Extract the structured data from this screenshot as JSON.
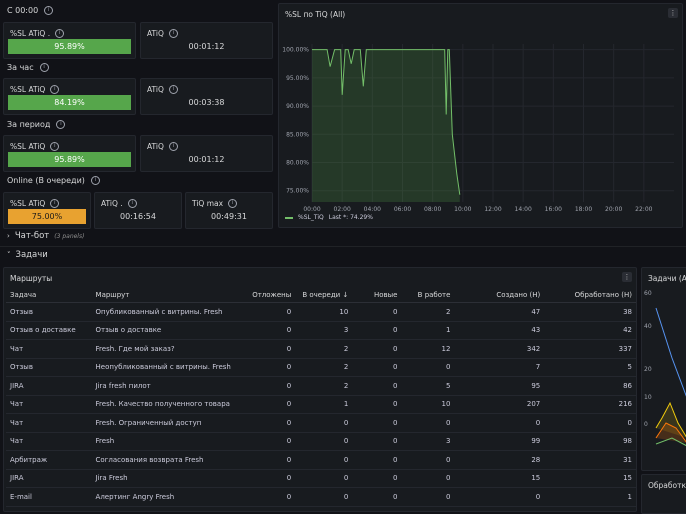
{
  "colors": {
    "green": "#56a64b",
    "orange": "#e8a230",
    "bg": "#111217",
    "panel": "#181b1f"
  },
  "groups": [
    {
      "title": "С 00:00",
      "stat_title": "%SL ATiQ .",
      "stat_value": "95.89%",
      "stat_color": "#56a64b",
      "stat_level": 0.9589,
      "atiq_title": "ATiQ",
      "atiq_value": "00:01:12"
    },
    {
      "title": "За час",
      "stat_title": "%SL ATiQ",
      "stat_value": "84.19%",
      "stat_color": "#56a64b",
      "stat_level": 0.8419,
      "atiq_title": "ATiQ",
      "atiq_value": "00:03:38"
    },
    {
      "title": "За период",
      "stat_title": "%SL ATiQ",
      "stat_value": "95.89%",
      "stat_color": "#56a64b",
      "stat_level": 0.9589,
      "atiq_title": "ATiQ",
      "atiq_value": "00:01:12"
    }
  ],
  "online": {
    "title": "Online (В очереди)",
    "stat_title": "%SL ATiQ",
    "stat_value": "75.00%",
    "stat_level": 0.75,
    "atiq_title": "ATiQ .",
    "atiq_value": "00:16:54",
    "max_title": "TiQ max",
    "max_value": "00:49:31"
  },
  "chart_panel": {
    "title": "%SL по TiQ (All)",
    "legend_label": "%SL_TiQ",
    "legend_last": "Last *: 74.29%"
  },
  "chart_data": {
    "type": "line",
    "title": "%SL по TiQ (All)",
    "xlabel": "",
    "ylabel": "",
    "y_ticks": [
      "100.00%",
      "95.00%",
      "90.00%",
      "85.00%",
      "80.00%",
      "75.00%"
    ],
    "x_ticks": [
      "00:00",
      "02:00",
      "04:00",
      "06:00",
      "08:00",
      "10:00",
      "12:00",
      "14:00",
      "16:00",
      "18:00",
      "20:00",
      "22:00"
    ],
    "ylim": [
      73,
      101
    ],
    "xlim": [
      0,
      24
    ],
    "series": [
      {
        "name": "%SL_TiQ",
        "x": [
          0,
          0.8,
          1.0,
          1.2,
          1.5,
          1.9,
          2.0,
          2.2,
          2.4,
          2.6,
          2.8,
          3.0,
          3.2,
          3.4,
          3.6,
          4.0,
          5.0,
          6.0,
          7.0,
          8.0,
          8.6,
          8.8,
          8.9,
          9.0,
          9.1,
          9.3,
          9.6,
          9.8
        ],
        "values": [
          100,
          100,
          100,
          97.0,
          100,
          100,
          92.0,
          100,
          100,
          97.5,
          100,
          100,
          100,
          93.5,
          100,
          100,
          100,
          100,
          100,
          100,
          100,
          100,
          88.5,
          100,
          100,
          85.0,
          78.0,
          74.29
        ]
      }
    ]
  },
  "chatbot": {
    "label": "Чат-бот",
    "count": "(3 panels)"
  },
  "tasks_section": {
    "label": "Задачи"
  },
  "routes": {
    "title": "Маршруты",
    "columns": [
      "Задача",
      "Маршрут",
      "Отложены",
      "В очереди",
      "Новые",
      "В работе",
      "Создано (Н)",
      "Обработано (Н)"
    ],
    "sort_indicator": "↓",
    "rows": [
      [
        "Отзыв",
        "Опубликованный с витрины. Fresh",
        "0",
        "10",
        "0",
        "2",
        "47",
        "38"
      ],
      [
        "Отзыв о доставке",
        "Отзыв о доставке",
        "0",
        "3",
        "0",
        "1",
        "43",
        "42"
      ],
      [
        "Чат",
        "Fresh. Где мой заказ?",
        "0",
        "2",
        "0",
        "12",
        "342",
        "337"
      ],
      [
        "Отзыв",
        "Неопубликованный с витрины. Fresh",
        "0",
        "2",
        "0",
        "0",
        "7",
        "5"
      ],
      [
        "JIRA",
        "Jira fresh пилот",
        "0",
        "2",
        "0",
        "5",
        "95",
        "86"
      ],
      [
        "Чат",
        "Fresh. Качество полученного товара",
        "0",
        "1",
        "0",
        "10",
        "207",
        "216"
      ],
      [
        "Чат",
        "Fresh. Ограниченный доступ",
        "0",
        "0",
        "0",
        "0",
        "0",
        "0"
      ],
      [
        "Чат",
        "Fresh",
        "0",
        "0",
        "0",
        "3",
        "99",
        "98"
      ],
      [
        "Арбитраж",
        "Согласования возврата Fresh",
        "0",
        "0",
        "0",
        "0",
        "28",
        "31"
      ],
      [
        "JIRA",
        "Jira Fresh",
        "0",
        "0",
        "0",
        "0",
        "15",
        "15"
      ],
      [
        "E-mail",
        "Алертинг Angry Fresh",
        "0",
        "0",
        "0",
        "0",
        "0",
        "1"
      ]
    ]
  },
  "side_panel": {
    "title": "Задачи (All",
    "y_ticks": [
      "60",
      "40",
      "20",
      "10",
      "0"
    ]
  },
  "side_panel2": {
    "title": "Обработка"
  }
}
